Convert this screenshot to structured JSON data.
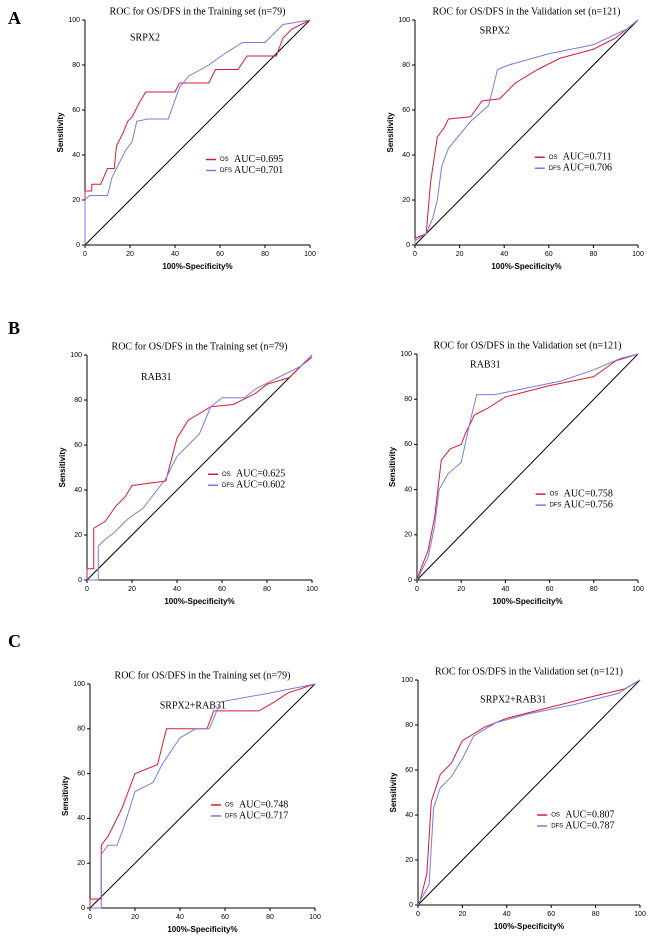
{
  "panel_labels": [
    "A",
    "B",
    "C"
  ],
  "chart_data": [
    {
      "type": "line",
      "title": "ROC for OS/DFS in  the Training set (n=79)",
      "annotation": "SRPX2",
      "xlabel": "100%-Specificity%",
      "ylabel": "Sensitivity",
      "xlim": [
        0,
        100
      ],
      "ylim": [
        0,
        100
      ],
      "xticks": [
        0,
        20,
        40,
        60,
        80,
        100
      ],
      "yticks": [
        0,
        20,
        40,
        60,
        80,
        100
      ],
      "reference_line": true,
      "series": [
        {
          "name": "OS",
          "legend_label": "AUC=0.695",
          "color": "#d81b3c",
          "x": [
            0,
            0,
            3,
            3,
            7,
            10,
            13,
            14,
            17,
            19,
            21,
            24,
            27,
            40,
            42,
            55,
            58,
            68,
            72,
            85,
            88,
            92,
            100
          ],
          "values": [
            0,
            24,
            24,
            27,
            27,
            34,
            34,
            44,
            50,
            55,
            57,
            63,
            68,
            68,
            72,
            72,
            78,
            78,
            84,
            84,
            92,
            96,
            100
          ]
        },
        {
          "name": "DFS",
          "legend_label": "AUC=0.701",
          "color": "#7b7be0",
          "x": [
            0,
            0,
            2,
            10,
            12,
            16,
            18,
            21,
            23,
            28,
            37,
            42,
            46,
            55,
            62,
            70,
            80,
            88,
            100
          ],
          "values": [
            0,
            20,
            22,
            22,
            30,
            38,
            42,
            46,
            55,
            56,
            56,
            70,
            75,
            80,
            85,
            90,
            90,
            98,
            100
          ]
        }
      ]
    },
    {
      "type": "line",
      "title": "ROC for OS/DFS in the Validation set (n=121)",
      "annotation": "SRPX2",
      "xlabel": "100%-Specificity%",
      "ylabel": "Sensitivity",
      "xlim": [
        0,
        100
      ],
      "ylim": [
        0,
        100
      ],
      "xticks": [
        0,
        20,
        40,
        60,
        80,
        100
      ],
      "yticks": [
        0,
        20,
        40,
        60,
        80,
        100
      ],
      "reference_line": true,
      "series": [
        {
          "name": "OS",
          "legend_label": "AUC=0.711",
          "color": "#d81b3c",
          "x": [
            0,
            0,
            5,
            7,
            10,
            13,
            15,
            25,
            30,
            38,
            45,
            55,
            65,
            80,
            90,
            100
          ],
          "values": [
            0,
            3,
            5,
            28,
            48,
            52,
            56,
            57,
            64,
            65,
            72,
            78,
            83,
            87,
            92,
            100
          ]
        },
        {
          "name": "DFS",
          "legend_label": "AUC=0.706",
          "color": "#7b7be0",
          "x": [
            0,
            0,
            5,
            8,
            10,
            12,
            15,
            20,
            25,
            33,
            37,
            42,
            60,
            80,
            95,
            100
          ],
          "values": [
            0,
            2,
            5,
            12,
            20,
            35,
            43,
            49,
            55,
            62,
            78,
            80,
            85,
            89,
            96,
            100
          ]
        }
      ]
    },
    {
      "type": "line",
      "title": "ROC for OS/DFS in  the Training set (n=79)",
      "annotation": "RAB31",
      "xlabel": "100%-Specificity%",
      "ylabel": "Sensitivity",
      "xlim": [
        0,
        100
      ],
      "ylim": [
        0,
        100
      ],
      "xticks": [
        0,
        20,
        40,
        60,
        80,
        100
      ],
      "yticks": [
        0,
        20,
        40,
        60,
        80,
        100
      ],
      "reference_line": true,
      "series": [
        {
          "name": "OS",
          "legend_label": "AUC=0.625",
          "color": "#d81b3c",
          "x": [
            0,
            0,
            3,
            3,
            8,
            13,
            17,
            20,
            35,
            40,
            45,
            55,
            65,
            75,
            80,
            90,
            95,
            100
          ],
          "values": [
            0,
            5,
            5,
            23,
            26,
            33,
            37,
            42,
            44,
            63,
            71,
            77,
            78,
            83,
            87,
            90,
            95,
            99
          ]
        },
        {
          "name": "DFS",
          "legend_label": "AUC=0.602",
          "color": "#7b7be0",
          "x": [
            0,
            5,
            5,
            8,
            12,
            18,
            25,
            35,
            40,
            45,
            50,
            55,
            60,
            70,
            75,
            85,
            95,
            100
          ],
          "values": [
            0,
            0,
            15,
            18,
            21,
            27,
            32,
            45,
            55,
            60,
            65,
            77,
            81,
            81,
            85,
            90,
            95,
            100
          ]
        }
      ]
    },
    {
      "type": "line",
      "title": "ROC for OS/DFS in the Validation set  (n=121)",
      "annotation": "RAB31",
      "xlabel": "100%-Specificity%",
      "ylabel": "Sensitivity",
      "xlim": [
        0,
        100
      ],
      "ylim": [
        0,
        100
      ],
      "xticks": [
        0,
        20,
        40,
        60,
        80,
        100
      ],
      "yticks": [
        0,
        20,
        40,
        60,
        80,
        100
      ],
      "reference_line": true,
      "series": [
        {
          "name": "OS",
          "legend_label": "AUC=0.758",
          "color": "#d81b3c",
          "x": [
            0,
            1,
            5,
            8,
            11,
            15,
            20,
            22,
            26,
            32,
            40,
            60,
            80,
            90,
            100
          ],
          "values": [
            0,
            3,
            13,
            28,
            53,
            58,
            60,
            65,
            73,
            76,
            81,
            86,
            90,
            97,
            100
          ]
        },
        {
          "name": "DFS",
          "legend_label": "AUC=0.756",
          "color": "#7b7be0",
          "x": [
            0,
            1,
            5,
            8,
            10,
            14,
            20,
            24,
            27,
            35,
            50,
            65,
            80,
            92,
            100
          ],
          "values": [
            0,
            2,
            10,
            24,
            40,
            47,
            52,
            70,
            82,
            82,
            85,
            88,
            93,
            98,
            100
          ]
        }
      ]
    },
    {
      "type": "line",
      "title": "ROC for OS/DFS in  the Training set (n=79)",
      "annotation": "SRPX2+RAB31",
      "xlabel": "100%-Specificity%",
      "ylabel": "Sensitivity",
      "xlim": [
        0,
        100
      ],
      "ylim": [
        0,
        100
      ],
      "xticks": [
        0,
        20,
        40,
        60,
        80,
        100
      ],
      "yticks": [
        0,
        20,
        40,
        60,
        80,
        100
      ],
      "reference_line": true,
      "series": [
        {
          "name": "OS",
          "legend_label": "AUC=0.748",
          "color": "#d81b3c",
          "x": [
            0,
            0,
            5,
            5,
            8,
            10,
            14,
            17,
            20,
            30,
            34,
            52,
            55,
            75,
            82,
            88,
            100
          ],
          "values": [
            0,
            4,
            4,
            28,
            32,
            36,
            44,
            52,
            60,
            64,
            80,
            80,
            88,
            88,
            92,
            96,
            100
          ]
        },
        {
          "name": "DFS",
          "legend_label": "AUC=0.717",
          "color": "#7b7be0",
          "x": [
            0,
            5,
            5,
            8,
            12,
            15,
            20,
            28,
            32,
            40,
            47,
            53,
            58,
            80,
            100
          ],
          "values": [
            0,
            0,
            24,
            28,
            28,
            36,
            52,
            56,
            64,
            76,
            80,
            80,
            92,
            96,
            100
          ]
        }
      ]
    },
    {
      "type": "line",
      "title": "ROC for OS/DFS in the Validation set (n=121)",
      "annotation": "SRPX2+RAB31",
      "xlabel": "100%-Specificity%",
      "ylabel": "Sensitivity",
      "xlim": [
        0,
        100
      ],
      "ylim": [
        0,
        100
      ],
      "xticks": [
        0,
        20,
        40,
        60,
        80,
        100
      ],
      "yticks": [
        0,
        20,
        40,
        60,
        80,
        100
      ],
      "reference_line": true,
      "series": [
        {
          "name": "OS",
          "legend_label": "AUC=0.807",
          "color": "#d81b3c",
          "x": [
            0,
            1,
            4,
            6,
            10,
            15,
            20,
            30,
            40,
            60,
            80,
            93,
            100
          ],
          "values": [
            0,
            2,
            14,
            46,
            58,
            63,
            73,
            79,
            83,
            88,
            93,
            96,
            100
          ]
        },
        {
          "name": "DFS",
          "legend_label": "AUC=0.787",
          "color": "#7b7be0",
          "x": [
            0,
            1,
            5,
            7,
            10,
            15,
            20,
            25,
            35,
            50,
            70,
            90,
            100
          ],
          "values": [
            0,
            2,
            9,
            43,
            52,
            57,
            65,
            75,
            81,
            85,
            89,
            94,
            100
          ]
        }
      ]
    }
  ]
}
